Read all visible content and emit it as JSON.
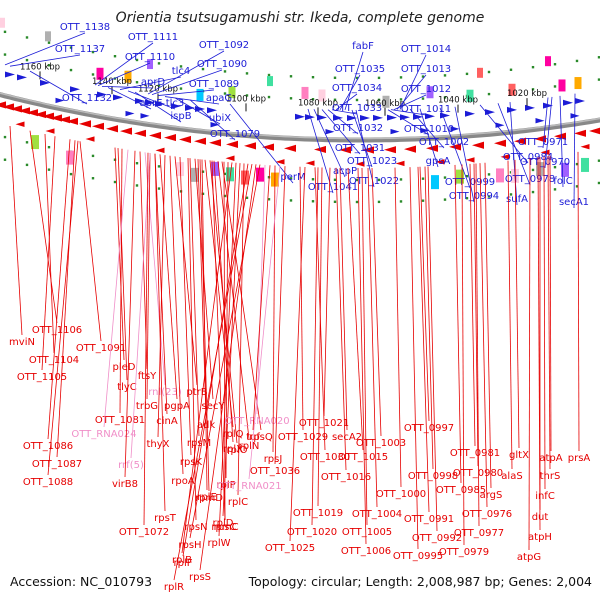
{
  "title": "Orientia tsutsugamushi str. Ikeda, complete genome",
  "footer": {
    "accession": "Accession: NC_010793",
    "summary": "Topology: circular; Length: 2,008,987 bp; Genes: 2,004"
  },
  "colors": {
    "plus_strand": "#1c1cd6",
    "minus_strand": "#e60000",
    "rna": "#f08fc8",
    "backbone": "#888888",
    "tick": "#2a8a2a"
  },
  "scale_ticks": [
    "1160 kbp",
    "1140 kbp",
    "1120 kbp",
    "1100 kbp",
    "1080 kbp",
    "1060 kbp",
    "1040 kbp",
    "1020 kbp"
  ],
  "top_labels": [
    "OTT_1138",
    "OTT_1137",
    "OTT_1132",
    "OTT_1111",
    "OTT_1110",
    "aprD",
    "aprE",
    "tlc4",
    "tlc3",
    "ispB",
    "OTT_1092",
    "OTT_1090",
    "OTT_1089",
    "apaG",
    "ubiX",
    "OTT_1079",
    "perM",
    "fabF",
    "OTT_1035",
    "OTT_1034",
    "OTT_1033",
    "OTT_1032",
    "OTT_1031",
    "acpP",
    "OTT_1041",
    "OTT_1023",
    "OTT_1022",
    "OTT_1014",
    "OTT_1013",
    "OTT_1012",
    "OTT_1011",
    "OTT_1010",
    "OTT_1002",
    "gpsA",
    "OTT_0999",
    "OTT_0994",
    "OTT_0984",
    "OTT_0978",
    "sufA",
    "OTT_0971",
    "OTT_0970",
    "folC",
    "secA1"
  ],
  "bottom_labels": [
    "mviN",
    "OTT_1106",
    "OTT_1104",
    "OTT_1105",
    "OTT_1091",
    "pleD",
    "tlyC",
    "OTT_1081",
    "OTT_RNA024",
    "OTT_1086",
    "OTT_1087",
    "OTT_1088",
    "ftsY",
    "rnl(23)",
    "trbG",
    "cinA",
    "pgpA",
    "ptrB",
    "thyX",
    "rrf(5)",
    "virB8",
    "secY",
    "adk",
    "rplQ",
    "rpsM",
    "rpoA",
    "rpsK",
    "rpsT",
    "OTT_1072",
    "rplO",
    "rpmD",
    "rpsN",
    "rplE",
    "rplX",
    "rplN",
    "rpsQ",
    "rpmC",
    "rpsC",
    "rplP",
    "rplB",
    "rplW",
    "rplD",
    "rplC",
    "rplF",
    "rplR",
    "rpsS",
    "rpsH",
    "OTT_RNA020",
    "tuf",
    "rpsJ",
    "OTT_RNA021",
    "OTT_1036",
    "OTT_1029",
    "OTT_1030",
    "OTT_1021",
    "OTT_1015",
    "secA2",
    "OTT_1016",
    "OTT_1019",
    "OTT_1020",
    "OTT_1025",
    "OTT_1003",
    "OTT_1000",
    "OTT_1004",
    "OTT_1005",
    "OTT_1006",
    "OTT_0997",
    "OTT_0998",
    "OTT_0995",
    "OTT_0991",
    "OTT_0992",
    "OTT_0985",
    "OTT_0981",
    "OTT_0980",
    "argS",
    "OTT_0976",
    "OTT_0977",
    "OTT_0979",
    "gltX",
    "alaS",
    "atpA",
    "thrS",
    "prsA",
    "infC",
    "dut",
    "atpH",
    "atpG"
  ]
}
